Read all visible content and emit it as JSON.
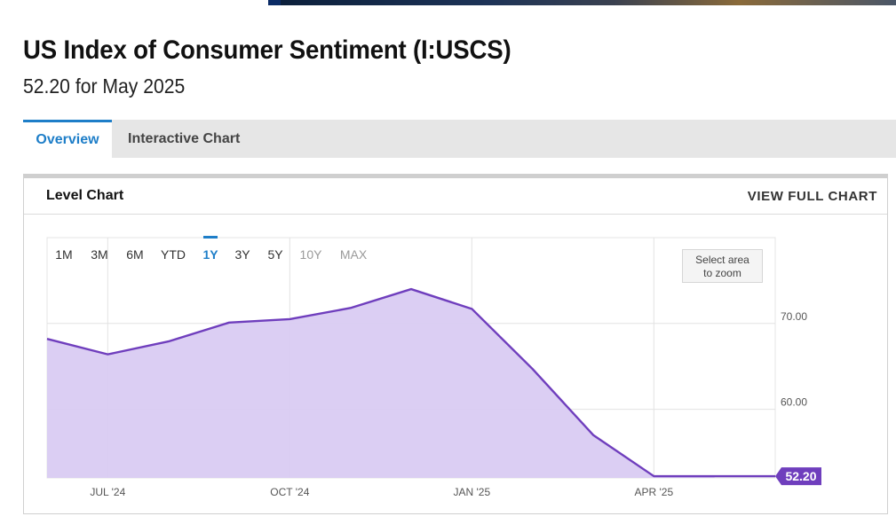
{
  "page": {
    "title": "US Index of Consumer Sentiment (I:USCS)",
    "subtitle": "52.20 for May 2025"
  },
  "tabs": [
    {
      "label": "Overview",
      "active": true
    },
    {
      "label": "Interactive Chart",
      "active": false
    }
  ],
  "panel": {
    "title": "Level Chart",
    "view_full_label": "VIEW FULL CHART"
  },
  "range_buttons": [
    {
      "label": "1M",
      "state": "enabled"
    },
    {
      "label": "3M",
      "state": "enabled"
    },
    {
      "label": "6M",
      "state": "enabled"
    },
    {
      "label": "YTD",
      "state": "enabled"
    },
    {
      "label": "1Y",
      "state": "active"
    },
    {
      "label": "3Y",
      "state": "enabled"
    },
    {
      "label": "5Y",
      "state": "enabled"
    },
    {
      "label": "10Y",
      "state": "disabled"
    },
    {
      "label": "MAX",
      "state": "disabled"
    }
  ],
  "zoom_hint": {
    "line1": "Select area",
    "line2": "to zoom"
  },
  "colors": {
    "accent": "#1e7ec8",
    "series_line": "#6f3ebd",
    "series_fill": "#d9cbf2",
    "last_value_badge": "#6f3ebd",
    "disabled_text": "#9a9a9a"
  },
  "chart_data": {
    "type": "area",
    "x": [
      "2024-06",
      "2024-07",
      "2024-08",
      "2024-09",
      "2024-10",
      "2024-11",
      "2024-12",
      "2025-01",
      "2025-02",
      "2025-03",
      "2025-04",
      "2025-05",
      "2025-06"
    ],
    "series": [
      {
        "values": [
          68.2,
          66.4,
          67.9,
          70.1,
          70.5,
          71.8,
          74.0,
          71.7,
          64.7,
          57.0,
          52.2,
          52.2,
          null
        ]
      }
    ],
    "x_tick_labels": [
      "JUL '24",
      "OCT '24",
      "JAN '25",
      "APR '25"
    ],
    "x_tick_positions": [
      "2024-07",
      "2024-10",
      "2025-01",
      "2025-04"
    ],
    "y_tick_labels": [
      "60.00",
      "70.00"
    ],
    "y_ticks": [
      60,
      70
    ],
    "ylim": [
      52,
      80
    ],
    "last_value_label": "52.20",
    "grid": true
  }
}
